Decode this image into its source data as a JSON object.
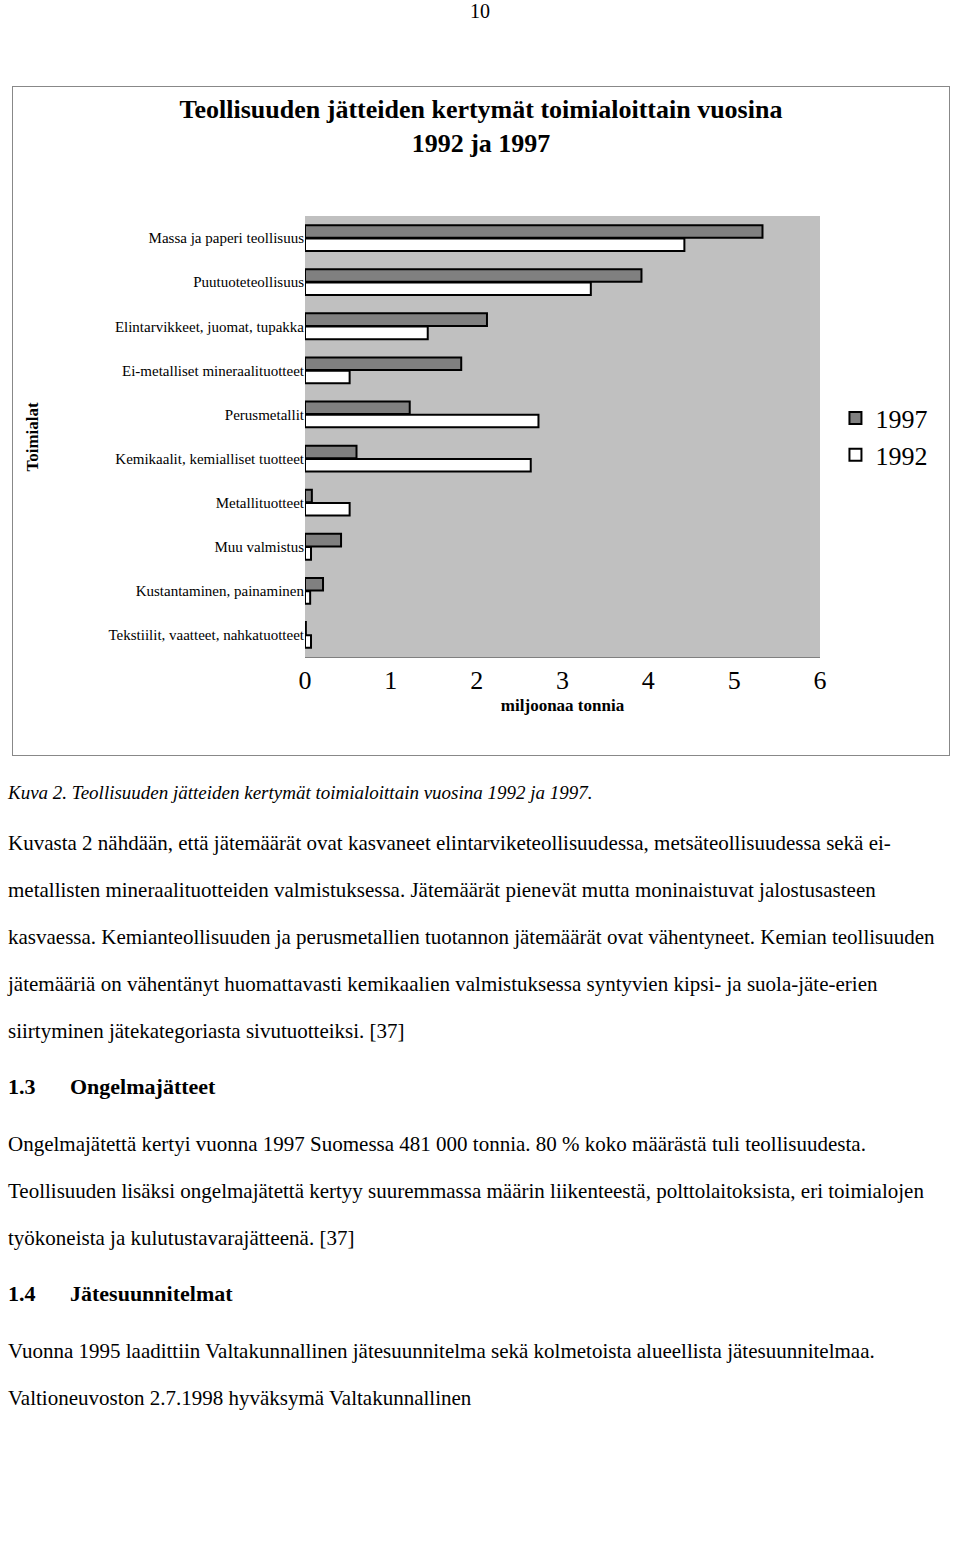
{
  "page_number": "10",
  "chart_data": {
    "type": "bar",
    "orientation": "horizontal",
    "title": [
      "Teollisuuden jätteiden kertymät toimialoittain vuosina",
      "1992 ja 1997"
    ],
    "x_label": "miljoonaa tonnia",
    "y_label": "Toimialat",
    "categories": [
      "Massa ja paperi teollisuus",
      "Puutuoteteollisuus",
      "Elintarvikkeet, juomat, tupakka",
      "Ei-metalliset mineraalituotteet",
      "Perusmetallit",
      "Kemikaalit, kemialliset tuotteet",
      "Metallituotteet",
      "Muu valmistus",
      "Kustantaminen, painaminen",
      "Tekstiilit, vaatteet, nahkatuotteet"
    ],
    "series": [
      {
        "name": "1997",
        "color": "#808080",
        "values": [
          5.33,
          3.92,
          2.12,
          1.82,
          1.22,
          0.6,
          0.08,
          0.42,
          0.21,
          0.01
        ]
      },
      {
        "name": "1992",
        "color": "#ffffff",
        "values": [
          4.42,
          3.33,
          1.43,
          0.52,
          2.72,
          2.63,
          0.52,
          0.07,
          0.06,
          0.07
        ]
      }
    ],
    "xlim": [
      0,
      6
    ],
    "xticks": [
      0,
      1,
      2,
      3,
      4,
      5,
      6
    ],
    "grid": false,
    "legend": "right"
  },
  "caption": "Kuva 2. Teollisuuden jätteiden kertymät toimialoittain vuosina 1992 ja 1997.",
  "paragraphs": [
    "Kuvasta 2 nähdään, että jätemäärät ovat kasvaneet elintarviketeollisuudessa, metsäteollisuudessa sekä ei-metallisten mineraalituotteiden valmistuksessa. Jätemäärät pienevät mutta moninaistuvat jalostusasteen kasvaessa. Kemianteollisuuden ja perusmetallien tuotannon jätemäärät ovat vähentyneet. Kemian teollisuuden jätemääriä on vähentänyt huomattavasti kemikaalien valmistuksessa syntyvien kipsi- ja suola-jäte-erien siirtyminen jätekategoriasta sivutuotteiksi. [37]"
  ],
  "sections": [
    {
      "number": "1.3",
      "title": "Ongelmajätteet",
      "paragraphs": [
        "Ongelmajätettä kertyi vuonna 1997 Suomessa 481 000 tonnia. 80 % koko määrästä tuli teollisuudesta. Teollisuuden lisäksi ongelmajätettä kertyy suuremmassa määrin liikenteestä, polttolaitoksista, eri toimialojen työkoneista ja kulutustavarajätteenä. [37]"
      ]
    },
    {
      "number": "1.4",
      "title": "Jätesuunnitelmat",
      "paragraphs": [
        "Vuonna 1995 laadittiin Valtakunnallinen jätesuunnitelma sekä kolmetoista alueellista jätesuunnitelmaa. Valtioneuvoston 2.7.1998 hyväksymä Valtakunnallinen"
      ]
    }
  ]
}
